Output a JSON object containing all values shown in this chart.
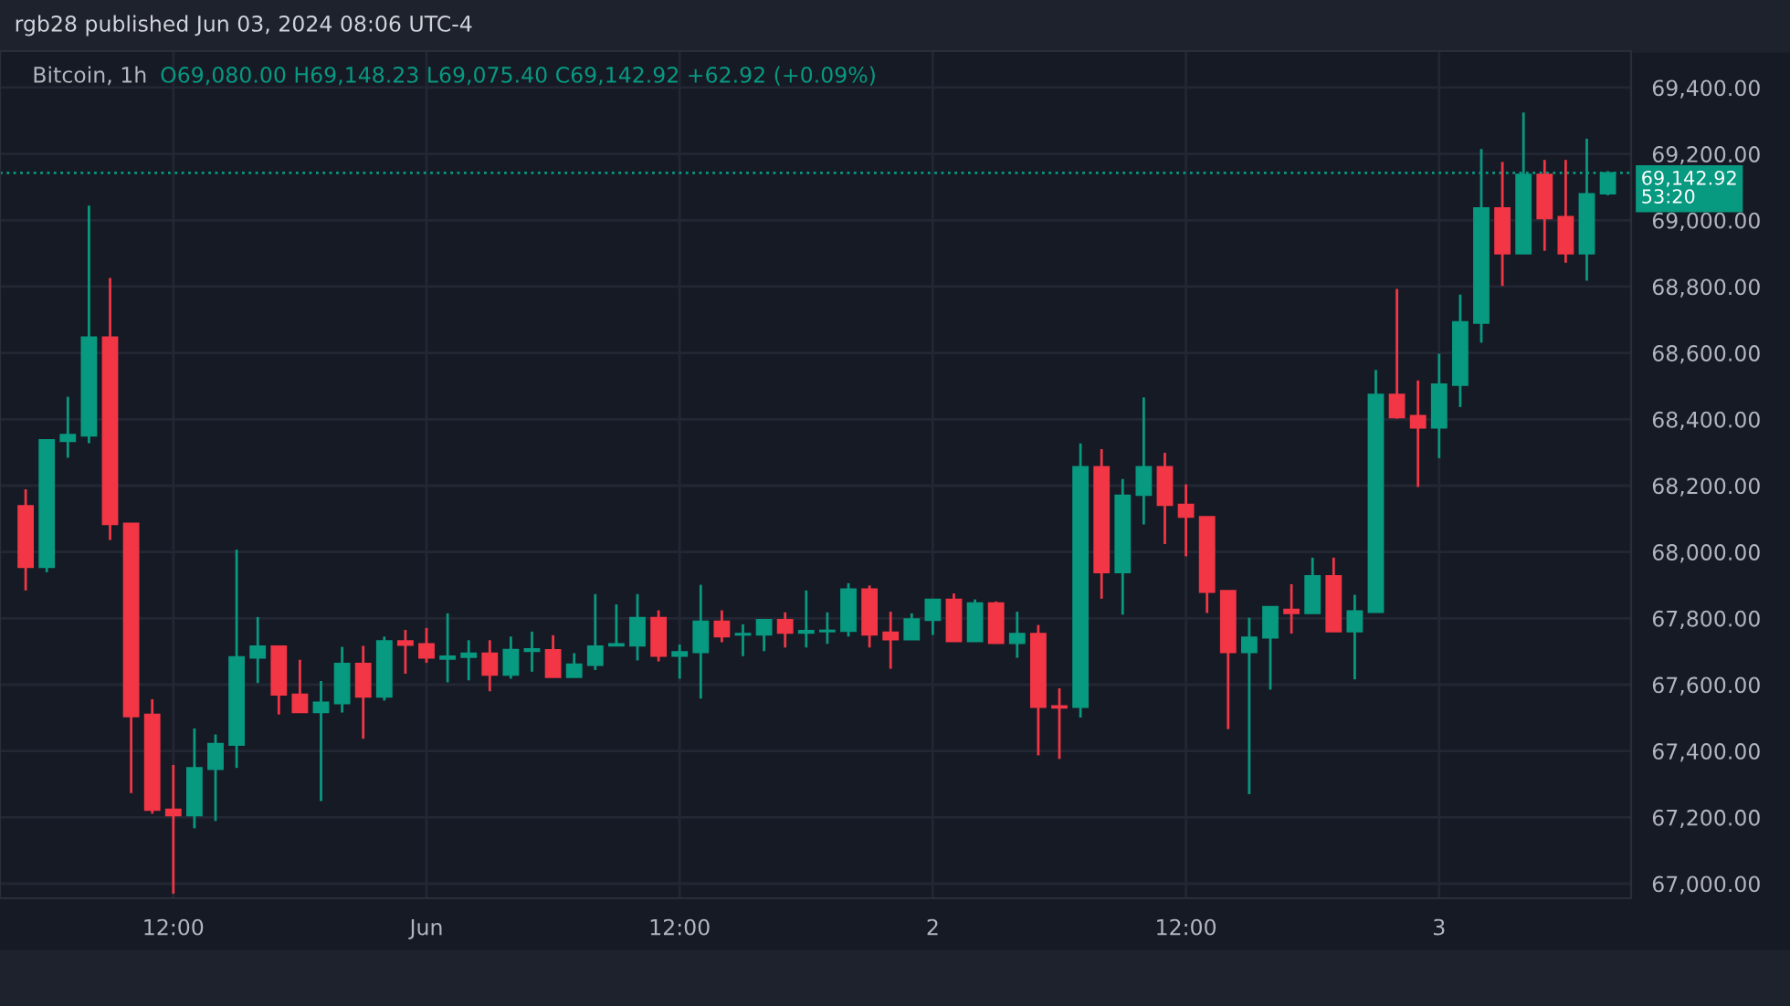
{
  "chart_data": {
    "type": "candlestick",
    "title": "Bitcoin, 1h",
    "annotations": [
      "rgb28 published Jun 03, 2024 08:06 UTC-4",
      "O69,080.00 H69,148.23 L69,075.40 C69,142.92 +62.92 (+0.09%)",
      "53:20"
    ],
    "x": [
      "2024-05-31T05:00",
      "2024-05-31T06:00",
      "2024-05-31T07:00",
      "2024-05-31T08:00",
      "2024-05-31T09:00",
      "2024-05-31T10:00",
      "2024-05-31T11:00",
      "2024-05-31T12:00",
      "2024-05-31T13:00",
      "2024-05-31T14:00",
      "2024-05-31T15:00",
      "2024-05-31T16:00",
      "2024-05-31T17:00",
      "2024-05-31T18:00",
      "2024-05-31T19:00",
      "2024-05-31T20:00",
      "2024-05-31T21:00",
      "2024-05-31T22:00",
      "2024-05-31T23:00",
      "2024-06-01T00:00",
      "2024-06-01T01:00",
      "2024-06-01T02:00",
      "2024-06-01T03:00",
      "2024-06-01T04:00",
      "2024-06-01T05:00",
      "2024-06-01T06:00",
      "2024-06-01T07:00",
      "2024-06-01T08:00",
      "2024-06-01T09:00",
      "2024-06-01T10:00",
      "2024-06-01T11:00",
      "2024-06-01T12:00",
      "2024-06-01T13:00",
      "2024-06-01T14:00",
      "2024-06-01T15:00",
      "2024-06-01T16:00",
      "2024-06-01T17:00",
      "2024-06-01T18:00",
      "2024-06-01T19:00",
      "2024-06-01T20:00",
      "2024-06-01T21:00",
      "2024-06-01T22:00",
      "2024-06-01T23:00",
      "2024-06-02T00:00",
      "2024-06-02T01:00",
      "2024-06-02T02:00",
      "2024-06-02T03:00",
      "2024-06-02T04:00",
      "2024-06-02T05:00",
      "2024-06-02T06:00",
      "2024-06-02T07:00",
      "2024-06-02T08:00",
      "2024-06-02T09:00",
      "2024-06-02T10:00",
      "2024-06-02T11:00",
      "2024-06-02T12:00",
      "2024-06-02T13:00",
      "2024-06-02T14:00",
      "2024-06-02T15:00",
      "2024-06-02T16:00",
      "2024-06-02T17:00",
      "2024-06-02T18:00",
      "2024-06-02T19:00",
      "2024-06-02T20:00",
      "2024-06-02T21:00",
      "2024-06-02T22:00",
      "2024-06-02T23:00",
      "2024-06-03T00:00",
      "2024-06-03T01:00",
      "2024-06-03T02:00",
      "2024-06-03T03:00",
      "2024-06-03T04:00",
      "2024-06-03T05:00",
      "2024-06-03T06:00",
      "2024-06-03T07:00",
      "2024-06-03T08:00"
    ],
    "ohlc": [
      [
        68139,
        68189,
        67884,
        67954
      ],
      [
        67954,
        68338,
        67939,
        68338
      ],
      [
        68334,
        68468,
        68284,
        68354
      ],
      [
        68350,
        69044,
        68328,
        68648
      ],
      [
        68648,
        68826,
        68036,
        68083
      ],
      [
        68086,
        68086,
        67273,
        67504
      ],
      [
        67510,
        67556,
        67211,
        67222
      ],
      [
        67224,
        67358,
        66970,
        67205
      ],
      [
        67205,
        67468,
        67167,
        67349
      ],
      [
        67345,
        67450,
        67189,
        67422
      ],
      [
        67418,
        68007,
        67349,
        67684
      ],
      [
        67681,
        67804,
        67605,
        67716
      ],
      [
        67716,
        67716,
        67510,
        67569
      ],
      [
        67571,
        67675,
        67516,
        67516
      ],
      [
        67516,
        67611,
        67249,
        67547
      ],
      [
        67543,
        67714,
        67516,
        67664
      ],
      [
        67664,
        67717,
        67437,
        67563
      ],
      [
        67563,
        67745,
        67552,
        67732
      ],
      [
        67732,
        67765,
        67633,
        67719
      ],
      [
        67723,
        67771,
        67666,
        67681
      ],
      [
        67677,
        67815,
        67607,
        67686
      ],
      [
        67683,
        67734,
        67613,
        67695
      ],
      [
        67695,
        67734,
        67580,
        67629
      ],
      [
        67629,
        67745,
        67618,
        67706
      ],
      [
        67701,
        67760,
        67639,
        67708
      ],
      [
        67705,
        67749,
        67622,
        67622
      ],
      [
        67622,
        67695,
        67622,
        67662
      ],
      [
        67659,
        67873,
        67644,
        67716
      ],
      [
        67717,
        67842,
        67717,
        67723
      ],
      [
        67717,
        67873,
        67673,
        67802
      ],
      [
        67802,
        67824,
        67670,
        67686
      ],
      [
        67686,
        67721,
        67618,
        67699
      ],
      [
        67697,
        67901,
        67558,
        67791
      ],
      [
        67791,
        67824,
        67728,
        67745
      ],
      [
        67750,
        67782,
        67686,
        67754
      ],
      [
        67750,
        67796,
        67701,
        67796
      ],
      [
        67796,
        67818,
        67712,
        67756
      ],
      [
        67756,
        67884,
        67712,
        67763
      ],
      [
        67760,
        67818,
        67723,
        67763
      ],
      [
        67761,
        67906,
        67745,
        67888
      ],
      [
        67888,
        67899,
        67712,
        67750
      ],
      [
        67758,
        67820,
        67648,
        67736
      ],
      [
        67736,
        67815,
        67736,
        67798
      ],
      [
        67794,
        67857,
        67750,
        67857
      ],
      [
        67857,
        67875,
        67730,
        67730
      ],
      [
        67730,
        67857,
        67730,
        67846
      ],
      [
        67846,
        67851,
        67725,
        67725
      ],
      [
        67725,
        67820,
        67681,
        67754
      ],
      [
        67754,
        67780,
        67387,
        67532
      ],
      [
        67536,
        67589,
        67376,
        67530
      ],
      [
        67532,
        68327,
        67501,
        68257
      ],
      [
        68257,
        68310,
        67859,
        67938
      ],
      [
        67938,
        68220,
        67811,
        68171
      ],
      [
        68171,
        68466,
        68083,
        68257
      ],
      [
        68257,
        68299,
        68024,
        68141
      ],
      [
        68143,
        68204,
        67987,
        68105
      ],
      [
        68106,
        68106,
        67816,
        67879
      ],
      [
        67883,
        67883,
        67466,
        67697
      ],
      [
        67697,
        67802,
        67270,
        67743
      ],
      [
        67741,
        67835,
        67585,
        67835
      ],
      [
        67827,
        67903,
        67754,
        67815
      ],
      [
        67815,
        67983,
        67815,
        67928
      ],
      [
        67928,
        67983,
        67760,
        67760
      ],
      [
        67760,
        67871,
        67616,
        67822
      ],
      [
        67818,
        68549,
        67818,
        68475
      ],
      [
        68475,
        68793,
        68402,
        68405
      ],
      [
        68411,
        68517,
        68196,
        68374
      ],
      [
        68374,
        68598,
        68283,
        68506
      ],
      [
        68503,
        68776,
        68437,
        68694
      ],
      [
        68690,
        69215,
        68631,
        69037
      ],
      [
        69037,
        69176,
        68802,
        68899
      ],
      [
        68899,
        69325,
        68899,
        69138
      ],
      [
        69138,
        69182,
        68908,
        69005
      ],
      [
        69011,
        69182,
        68872,
        68899
      ],
      [
        68899,
        69246,
        68818,
        69080
      ],
      [
        69080,
        69148.23,
        69075.4,
        69142.92
      ]
    ],
    "colors": [
      "#f23645",
      "#089981",
      "#089981",
      "#089981",
      "#f23645",
      "#f23645",
      "#f23645",
      "#f23645",
      "#089981",
      "#089981",
      "#089981",
      "#089981",
      "#f23645",
      "#f23645",
      "#089981",
      "#089981",
      "#f23645",
      "#089981",
      "#f23645",
      "#f23645",
      "#089981",
      "#089981",
      "#f23645",
      "#089981",
      "#089981",
      "#f23645",
      "#089981",
      "#089981",
      "#089981",
      "#089981",
      "#f23645",
      "#089981",
      "#089981",
      "#f23645",
      "#089981",
      "#089981",
      "#f23645",
      "#089981",
      "#089981",
      "#089981",
      "#f23645",
      "#f23645",
      "#089981",
      "#089981",
      "#f23645",
      "#089981",
      "#f23645",
      "#089981",
      "#f23645",
      "#f23645",
      "#089981",
      "#f23645",
      "#089981",
      "#089981",
      "#f23645",
      "#f23645",
      "#f23645",
      "#f23645",
      "#089981",
      "#089981",
      "#f23645",
      "#089981",
      "#f23645",
      "#089981",
      "#089981",
      "#f23645",
      "#f23645",
      "#089981",
      "#089981",
      "#089981",
      "#f23645",
      "#089981",
      "#f23645",
      "#f23645",
      "#089981",
      "#089981"
    ],
    "xlim": [
      "2024-05-31T03:47",
      "2024-06-03T09:06"
    ],
    "xticks": [
      {
        "value": "2024-05-31T12:00",
        "label": "12:00"
      },
      {
        "value": "2024-06-01T00:00",
        "label": "Jun"
      },
      {
        "value": "2024-06-01T12:00",
        "label": "12:00"
      },
      {
        "value": "2024-06-02T00:00",
        "label": "2"
      },
      {
        "value": "2024-06-02T12:00",
        "label": "12:00"
      },
      {
        "value": "2024-06-03T00:00",
        "label": "3"
      }
    ],
    "ylim": [
      66956,
      69510
    ],
    "yticks": [
      {
        "value": 67000,
        "label": "67,000.00"
      },
      {
        "value": 67200,
        "label": "67,200.00"
      },
      {
        "value": 67400,
        "label": "67,400.00"
      },
      {
        "value": 67600,
        "label": "67,600.00"
      },
      {
        "value": 67800,
        "label": "67,800.00"
      },
      {
        "value": 68000,
        "label": "68,000.00"
      },
      {
        "value": 68200,
        "label": "68,200.00"
      },
      {
        "value": 68400,
        "label": "68,400.00"
      },
      {
        "value": 68600,
        "label": "68,600.00"
      },
      {
        "value": 68800,
        "label": "68,800.00"
      },
      {
        "value": 69000,
        "label": "69,000.00"
      },
      {
        "value": 69200,
        "label": "69,200.00"
      },
      {
        "value": 69400,
        "label": "69,400.00"
      }
    ],
    "ref_lines": [
      {
        "axis": "y",
        "value": 69142.92,
        "label": "69,142.92",
        "color": "#089981",
        "line_style": "dotted"
      }
    ],
    "grid": true
  }
}
